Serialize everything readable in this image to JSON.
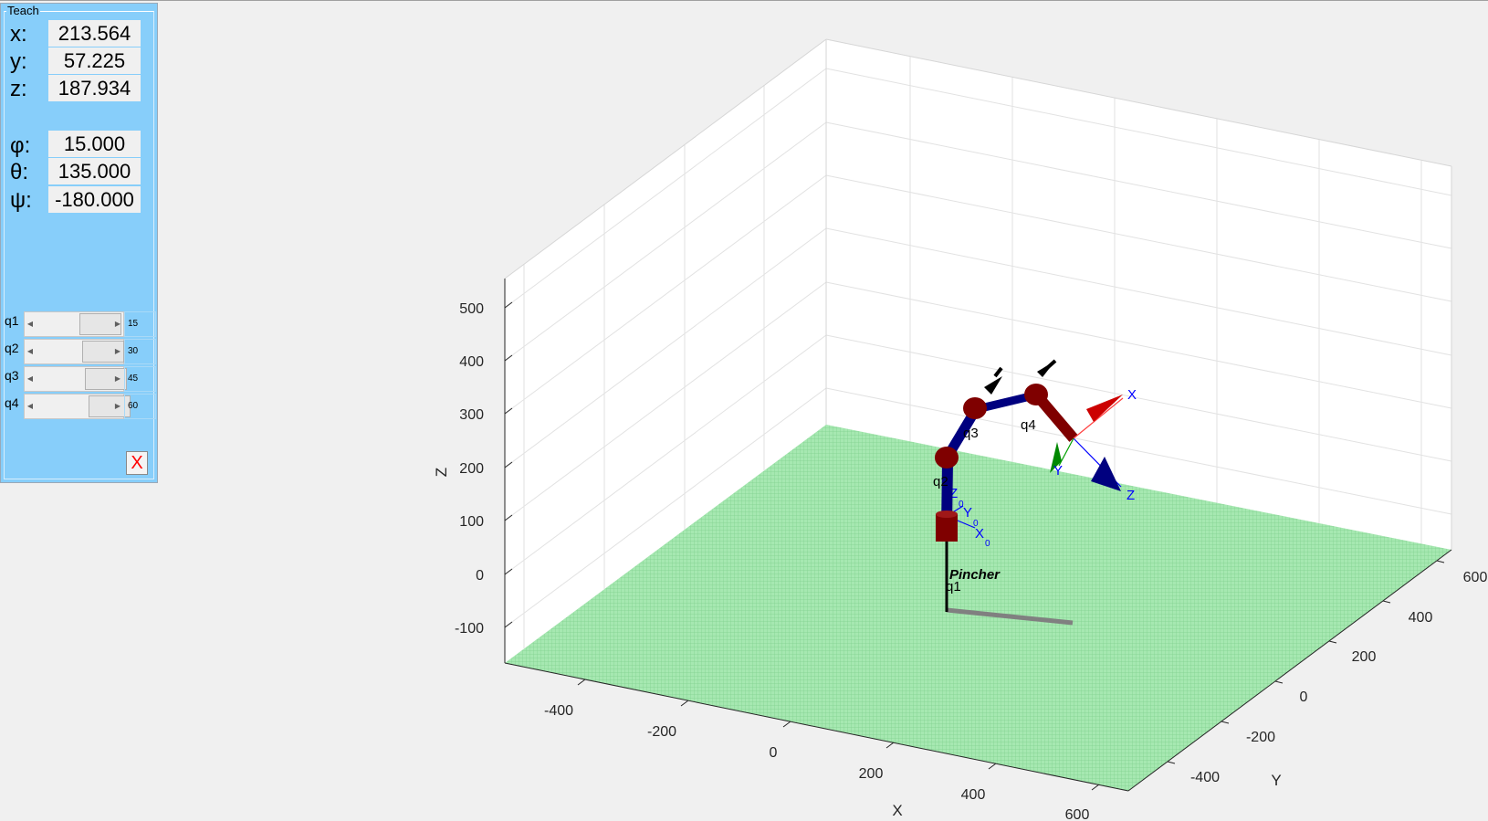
{
  "panel": {
    "title": "Teach",
    "coords": [
      {
        "label": "x:",
        "value": "213.564"
      },
      {
        "label": "y:",
        "value": "57.225"
      },
      {
        "label": "z:",
        "value": "187.934"
      }
    ],
    "angles": [
      {
        "label": "φ:",
        "value": "15.000"
      },
      {
        "label": "θ:",
        "value": "135.000"
      },
      {
        "label": "ψ:",
        "value": "-180.000"
      }
    ],
    "joints": [
      {
        "label": "q1",
        "value": "15"
      },
      {
        "label": "q2",
        "value": "30"
      },
      {
        "label": "q3",
        "value": "45"
      },
      {
        "label": "q4",
        "value": "60"
      }
    ],
    "close_label": "X"
  },
  "plot": {
    "robot_name": "Pincher",
    "xlabel": "X",
    "ylabel": "Y",
    "zlabel": "Z",
    "x_ticks": [
      "-400",
      "-200",
      "0",
      "200",
      "400",
      "600"
    ],
    "y_ticks": [
      "-400",
      "-200",
      "0",
      "200",
      "400",
      "600"
    ],
    "z_ticks": [
      "-100",
      "0",
      "100",
      "200",
      "300",
      "400",
      "500"
    ],
    "joint_labels": [
      "q1",
      "q2",
      "q3",
      "q4"
    ],
    "base_frame": {
      "x": "X",
      "y": "Y",
      "z": "Z",
      "sub": "0"
    },
    "tool_frame": {
      "x": "X",
      "y": "Y",
      "z": "Z"
    },
    "floor_color": "#9be5a8",
    "link_color": "#00007f",
    "joint_color": "#7f0000"
  }
}
